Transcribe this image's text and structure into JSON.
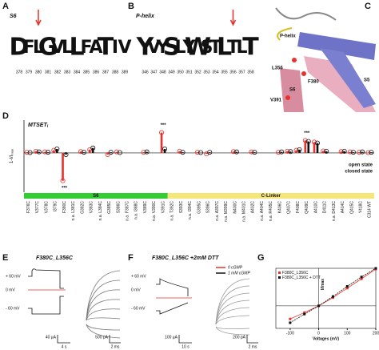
{
  "panels": {
    "A": {
      "label": "A",
      "segment": "S6",
      "logo": [
        "D",
        "F",
        "L",
        "G",
        "V",
        "L",
        "L",
        "F",
        "A",
        "T",
        "I",
        "V"
      ],
      "positions": [
        "378",
        "379",
        "380",
        "381",
        "382",
        "383",
        "384",
        "385",
        "386",
        "387",
        "388",
        "389"
      ]
    },
    "B": {
      "label": "B",
      "segment": "P-helix",
      "logo": [
        "Y",
        "V",
        "Y",
        "S",
        "L",
        "Y",
        "W",
        "S",
        "T",
        "L",
        "T",
        "L",
        "T"
      ],
      "positions": [
        "346",
        "347",
        "348",
        "349",
        "350",
        "351",
        "352",
        "353",
        "354",
        "355",
        "356",
        "357",
        "358"
      ]
    },
    "C": {
      "label": "C",
      "labels": [
        "P-helix",
        "L356",
        "F380",
        "S6",
        "S5",
        "V391"
      ]
    },
    "D": {
      "label": "D",
      "title": "MTSET",
      "title_sub": "i",
      "y_label": "1-I/I",
      "y_label_sub": "max",
      "ylim": [
        -1.2,
        1.0
      ],
      "categories": [
        "F376C",
        "V377C",
        "V378C",
        "I379C",
        "F380C",
        "n.a. L381C",
        "G382C",
        "V383C",
        "n.a. L384C",
        "G385C",
        "S386C",
        "n.a. F387C",
        "n.a. I388C",
        "V389C",
        "n.a. V390C",
        "V391C",
        "n.a. T392C",
        "S393C",
        "n.a. I394C",
        "G395C",
        "S396C",
        "n.a. A397C",
        "n.a. M399C",
        "N400C",
        "n.a. M401C",
        "A402C",
        "n.a. A404C",
        "n.a. R405C",
        "K406C",
        "Q407C",
        "F408C",
        "Q409C",
        "A410C",
        "D411C",
        "n.a. D413C",
        "A414C",
        "Q415C",
        "Y418C",
        "C314 WT"
      ],
      "series": [
        {
          "name": "open state",
          "color": "#e8322b",
          "values": [
            0.02,
            0.05,
            0.03,
            0.08,
            -0.85,
            null,
            0.04,
            0.1,
            null,
            -0.05,
            0.03,
            null,
            null,
            0.02,
            null,
            0.62,
            null,
            0.05,
            null,
            0.02,
            -0.03,
            null,
            null,
            0.04,
            null,
            0.03,
            null,
            null,
            0.02,
            0.05,
            0.08,
            0.38,
            0.33,
            0.06,
            null,
            0.04,
            0.03,
            0.02,
            0.01
          ]
        },
        {
          "name": "closed state",
          "color": "#111111",
          "values": [
            0.01,
            0.03,
            0.02,
            0.12,
            -0.05,
            null,
            0.02,
            0.15,
            null,
            0.02,
            0.01,
            null,
            null,
            0.03,
            null,
            0.12,
            null,
            0.02,
            null,
            0.01,
            0.02,
            null,
            null,
            0.03,
            null,
            0.02,
            null,
            null,
            0.03,
            0.04,
            0.1,
            0.35,
            0.3,
            0.05,
            null,
            0.05,
            0.02,
            0.03,
            0.02
          ]
        }
      ],
      "annotations": [
        {
          "category": "F380C",
          "text": "***"
        },
        {
          "category": "V391C",
          "text": "***"
        },
        {
          "category": "Q409C",
          "text": "***"
        }
      ],
      "regions": [
        {
          "name": "S6",
          "color": "#33cc33",
          "from": "F376C",
          "to": "V391C"
        },
        {
          "name": "C-Linker",
          "color": "#f5e67a",
          "from": "n.a. T392C",
          "to": "C314 WT"
        }
      ]
    },
    "E": {
      "label": "E",
      "title": "F380C_L356C",
      "voltages": [
        "+ 60 mV",
        "0 mV",
        "- 60 mV"
      ],
      "scales": [
        "40 µA",
        "4 s",
        "500 pA",
        "2 ms"
      ]
    },
    "F": {
      "label": "F",
      "title": "F380C_L356C +2mM DTT",
      "legend": [
        "0 cGMP",
        "1 mM cGMP"
      ],
      "voltages": [
        "+ 60 mV",
        "0 mV",
        "- 60 mV"
      ],
      "scales": [
        "100 µA",
        "10 s",
        "200 pA",
        "2 ms"
      ]
    },
    "G": {
      "label": "G",
      "x_label": "Voltages (mV)",
      "y_label": "I/Imax",
      "xlim": [
        -150,
        200
      ],
      "ylim": [
        -0.6,
        1.0
      ],
      "xticks": [
        -100,
        0,
        100,
        200
      ],
      "series": [
        {
          "name": "F380C_L356C",
          "color": "#e8322b",
          "x": [
            -100,
            -50,
            0,
            50,
            100,
            150,
            200
          ],
          "y": [
            -0.35,
            -0.18,
            0,
            0.22,
            0.47,
            0.72,
            0.98
          ]
        },
        {
          "name": "F380C_L356C + DTT",
          "color": "#111111",
          "x": [
            -100,
            -50,
            0,
            50,
            100,
            150,
            200
          ],
          "y": [
            -0.45,
            -0.22,
            0,
            0.25,
            0.52,
            0.77,
            1.0
          ]
        }
      ]
    }
  }
}
